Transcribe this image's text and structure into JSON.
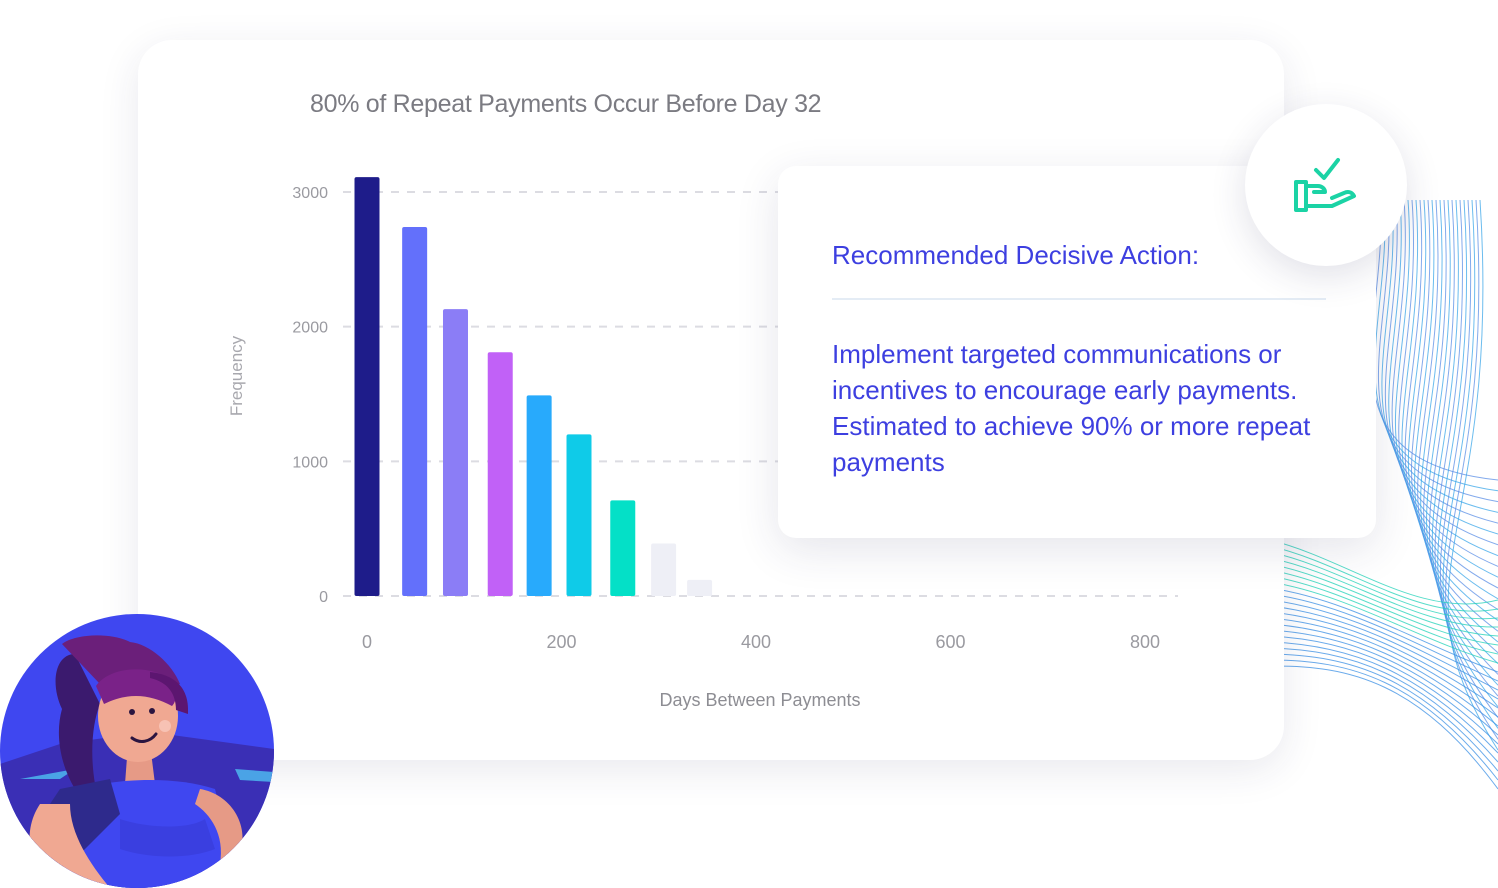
{
  "chart_data": {
    "type": "bar",
    "title": "80% of Repeat Payments Occur Before Day 32",
    "xlabel": "Days Between Payments",
    "ylabel": "Frequency",
    "xlim": [
      0,
      830
    ],
    "ylim": [
      0,
      3000
    ],
    "x_ticks": [
      0,
      200,
      400,
      600,
      800
    ],
    "y_ticks": [
      0,
      1000,
      2000,
      3000
    ],
    "grid": "horizontal dashed",
    "bars": [
      {
        "x": 0,
        "value": 3110,
        "color": "#1e1c8a"
      },
      {
        "x": 49,
        "value": 2740,
        "color": "#6370fb"
      },
      {
        "x": 91,
        "value": 2130,
        "color": "#8b7df6"
      },
      {
        "x": 137,
        "value": 1810,
        "color": "#c161f7"
      },
      {
        "x": 177,
        "value": 1490,
        "color": "#28aafc"
      },
      {
        "x": 218,
        "value": 1200,
        "color": "#0fcbe8"
      },
      {
        "x": 263,
        "value": 710,
        "color": "#04e0c7"
      },
      {
        "x": 305,
        "value": 390,
        "color": "#eeeff6"
      },
      {
        "x": 342,
        "value": 120,
        "color": "#eeeff6"
      }
    ]
  },
  "action_card": {
    "title": "Recommended Decisive Action:",
    "body": "Implement targeted communications or incentives to encourage early payments. Estimated to achieve 90% or more repeat payments"
  },
  "icons": {
    "badge": "hand-check-icon",
    "avatar": "woman-avatar-illustration"
  },
  "colors": {
    "accent": "#3d3fe0",
    "icon": "#1bd3a5",
    "avatar_bg": "#3f47f0"
  }
}
